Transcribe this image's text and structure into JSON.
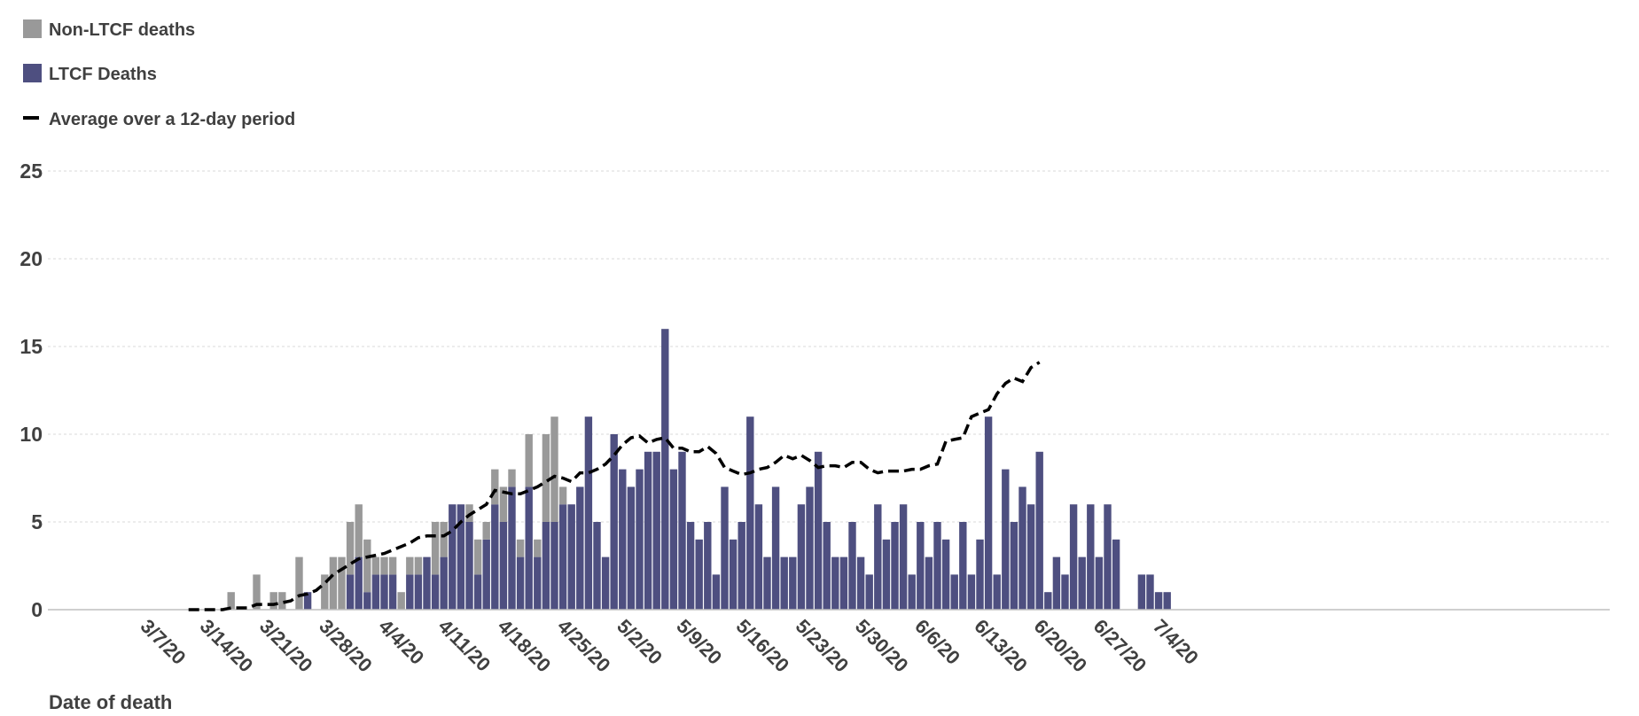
{
  "legend": {
    "non_ltcf_label": "Non-LTCF deaths",
    "ltcf_label": "LTCF Deaths",
    "average_label": "Average over a 12-day period"
  },
  "colors": {
    "non_ltcf": "#999999",
    "ltcf": "#4e4f80",
    "average": "#000000",
    "axis_text": "#404040",
    "grid": "#d9d9d9"
  },
  "chart_data": {
    "type": "bar",
    "stacked": true,
    "xlabel": "Date of death",
    "ylabel": "",
    "ylim": [
      0,
      25
    ],
    "y_ticks": [
      "0",
      "5",
      "10",
      "15",
      "20",
      "25"
    ],
    "x_tick_labels": [
      "3/7/20",
      "3/14/20",
      "3/21/20",
      "3/28/20",
      "4/4/20",
      "4/11/20",
      "4/18/20",
      "4/25/20",
      "5/2/20",
      "5/9/20",
      "5/16/20",
      "5/23/20",
      "5/30/20",
      "6/6/20",
      "6/13/20",
      "6/20/20",
      "6/27/20",
      "7/4/20"
    ],
    "x_start_date": "3/1/20",
    "grid": "horizontal dashed",
    "legend_position": "top-left",
    "series": [
      {
        "name": "LTCF Deaths",
        "values": [
          0,
          0,
          0,
          0,
          0,
          0,
          0,
          0,
          0,
          0,
          0,
          0,
          0,
          0,
          0,
          0,
          0,
          0,
          0,
          0,
          0,
          0,
          0,
          0,
          0,
          0,
          1,
          0,
          0,
          0,
          0,
          2,
          3,
          1,
          2,
          2,
          2,
          0,
          2,
          2,
          3,
          2,
          3,
          6,
          6,
          5,
          2,
          4,
          6,
          5,
          7,
          3,
          7,
          3,
          5,
          5,
          6,
          6,
          7,
          11,
          5,
          3,
          10,
          8,
          7,
          8,
          9,
          9,
          16,
          8,
          9,
          5,
          4,
          5,
          2,
          7,
          4,
          5,
          11,
          6,
          3,
          7,
          3,
          3,
          6,
          7,
          9,
          5,
          3,
          3,
          5,
          3,
          2,
          6,
          4,
          5,
          6,
          2,
          5,
          3,
          5,
          4,
          2,
          5,
          2,
          4,
          11,
          2,
          8,
          5,
          7,
          6,
          9,
          1,
          3,
          2,
          6,
          3,
          6,
          3,
          6,
          4,
          0,
          0,
          2,
          2,
          1,
          1
        ]
      },
      {
        "name": "Non-LTCF deaths",
        "values": [
          0,
          0,
          0,
          0,
          0,
          0,
          0,
          0,
          0,
          0,
          0,
          0,
          0,
          0,
          0,
          0,
          0,
          1,
          0,
          0,
          2,
          0,
          1,
          1,
          0,
          3,
          0,
          0,
          2,
          3,
          3,
          3,
          3,
          3,
          1,
          1,
          1,
          1,
          1,
          1,
          0,
          3,
          2,
          0,
          0,
          1,
          2,
          1,
          2,
          2,
          1,
          1,
          3,
          1,
          5,
          6,
          1,
          0,
          0,
          0,
          0,
          0,
          0,
          0,
          0,
          0,
          0,
          0,
          0,
          0,
          0,
          0,
          0,
          0,
          0,
          0,
          0,
          0,
          0,
          0,
          0,
          0,
          0,
          0,
          0,
          0,
          0,
          0,
          0,
          0,
          0,
          0,
          0,
          0,
          0,
          0,
          0,
          0,
          0,
          0,
          0,
          0,
          0,
          0,
          0,
          0,
          0,
          0,
          0,
          0,
          0,
          0,
          0,
          0,
          0,
          0,
          0,
          0,
          0,
          0,
          0,
          0,
          0,
          0,
          0,
          0,
          0,
          0
        ]
      }
    ],
    "average_12day": {
      "name": "Average over a 12-day period",
      "start_index": 12,
      "values": [
        0,
        0,
        0,
        0,
        0,
        0.1,
        0.1,
        0.1,
        0.3,
        0.3,
        0.3,
        0.4,
        0.5,
        0.8,
        0.9,
        1.1,
        1.5,
        2,
        2.3,
        2.6,
        2.9,
        3,
        3.1,
        3.2,
        3.4,
        3.6,
        3.8,
        4.1,
        4.2,
        4.2,
        4.2,
        4.5,
        5,
        5.4,
        5.7,
        6,
        6.8,
        6.7,
        6.6,
        6.6,
        6.8,
        7,
        7.3,
        7.6,
        7.5,
        7.3,
        7.8,
        7.8,
        8,
        8.3,
        8.8,
        9.4,
        9.8,
        9.9,
        9.5,
        9.7,
        9.8,
        9.2,
        9.2,
        9,
        9,
        9.3,
        8.9,
        8.1,
        7.9,
        7.7,
        7.8,
        8,
        8.1,
        8.4,
        8.8,
        8.6,
        8.8,
        8.5,
        8.1,
        8.2,
        8.2,
        8.1,
        8.4,
        8.4,
        8,
        7.8,
        7.9,
        7.9,
        7.9,
        8,
        8,
        8.2,
        8.3,
        9.6,
        9.7,
        9.8,
        11,
        11.2,
        11.4,
        12.3,
        12.9,
        13.2,
        13,
        13.8,
        14.1
      ]
    }
  }
}
